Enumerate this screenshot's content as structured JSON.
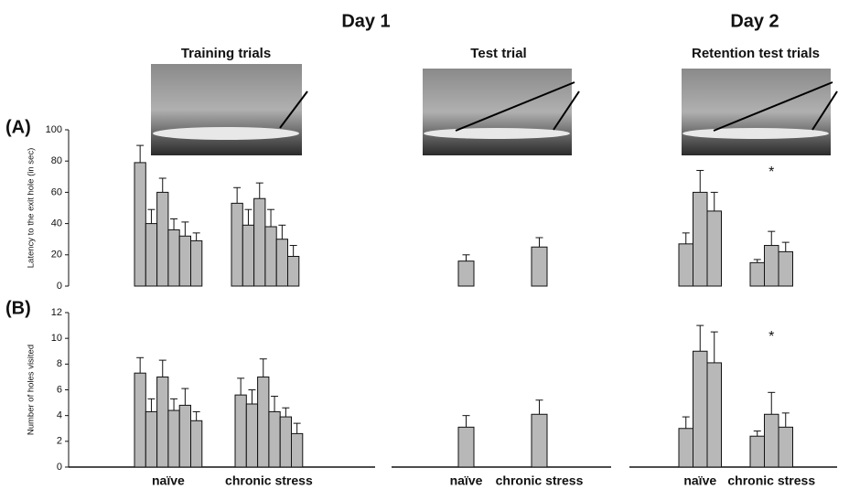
{
  "headers": [
    "Day 1",
    "Day 2"
  ],
  "panel_labels": [
    "(A)",
    "(B)"
  ],
  "chart_data": [
    {
      "type": "bar",
      "title": "Training trials",
      "ylabel": "Latency to the exit hole (in sec)",
      "color": "#b8b8b8",
      "values": [
        [
          79,
          40,
          60,
          36,
          32,
          29
        ],
        [
          53,
          39,
          56,
          38,
          30,
          19
        ]
      ],
      "errors": [
        [
          11,
          9,
          9,
          7,
          9,
          5
        ],
        [
          10,
          10,
          10,
          11,
          9,
          7
        ]
      ],
      "ylim": [
        0,
        100
      ],
      "yticks": [
        0,
        20,
        40,
        60,
        80,
        100
      ]
    },
    {
      "type": "bar",
      "title": "Test trial",
      "color": "#b8b8b8",
      "values": [
        [
          16
        ],
        [
          25
        ]
      ],
      "errors": [
        [
          4
        ],
        [
          6
        ]
      ],
      "ylim": [
        0,
        100
      ]
    },
    {
      "type": "bar",
      "title": "Retention test trials",
      "color": "#b8b8b8",
      "values": [
        [
          27,
          60,
          48
        ],
        [
          15,
          26,
          22
        ]
      ],
      "errors": [
        [
          7,
          14,
          12
        ],
        [
          2,
          9,
          6
        ]
      ],
      "ylim": [
        0,
        100
      ],
      "annotation": "*"
    },
    {
      "type": "bar",
      "ylabel": "Number of holes visited",
      "color": "#b8b8b8",
      "categories": [
        "naïve",
        "chronic stress"
      ],
      "values": [
        [
          7.3,
          4.3,
          7.0,
          4.4,
          4.8,
          3.6
        ],
        [
          5.6,
          4.9,
          7.0,
          4.3,
          3.9,
          2.6
        ]
      ],
      "errors": [
        [
          1.2,
          1.0,
          1.3,
          0.9,
          1.3,
          0.7
        ],
        [
          1.3,
          1.1,
          1.4,
          1.2,
          0.7,
          0.8
        ]
      ],
      "ylim": [
        0,
        12
      ],
      "yticks": [
        0,
        2,
        4,
        6,
        8,
        10,
        12
      ]
    },
    {
      "type": "bar",
      "color": "#b8b8b8",
      "categories": [
        "naïve",
        "chronic stress"
      ],
      "values": [
        [
          3.1
        ],
        [
          4.1
        ]
      ],
      "errors": [
        [
          0.9
        ],
        [
          1.1
        ]
      ],
      "ylim": [
        0,
        12
      ]
    },
    {
      "type": "bar",
      "color": "#b8b8b8",
      "categories": [
        "naïve",
        "chronic stress"
      ],
      "values": [
        [
          3.0,
          9.0,
          8.1
        ],
        [
          2.4,
          4.1,
          3.1
        ]
      ],
      "errors": [
        [
          0.9,
          2.0,
          2.4
        ],
        [
          0.4,
          1.7,
          1.1
        ]
      ],
      "ylim": [
        0,
        12
      ],
      "annotation": "*"
    }
  ]
}
